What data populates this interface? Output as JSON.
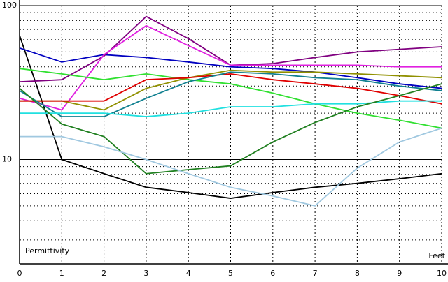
{
  "chart_data": {
    "type": "line",
    "log_y": true,
    "grid": true,
    "ylabel": "Permittivity",
    "xlabel": "Feet",
    "x": [
      0,
      1,
      2,
      3,
      4,
      5,
      6,
      7,
      8,
      9,
      10
    ],
    "xlim": [
      0,
      10
    ],
    "xticks": [
      0,
      1,
      2,
      3,
      4,
      5,
      6,
      7,
      8,
      9,
      10
    ],
    "ylim": [
      2.1,
      100
    ],
    "yticks": [
      10,
      100
    ],
    "y_minor_ticks": [
      3,
      4,
      5,
      6,
      7,
      8,
      9,
      20,
      30,
      40,
      50,
      60,
      70,
      80,
      90
    ],
    "series": [
      {
        "color": "#000000",
        "values": [
          64,
          10,
          8.1,
          6.6,
          6.1,
          5.6,
          6.1,
          6.6,
          7.0,
          7.5,
          8.1
        ]
      },
      {
        "color": "#0000c0",
        "values": [
          53,
          43,
          48,
          46,
          43,
          40,
          39,
          37,
          34,
          31,
          29
        ]
      },
      {
        "color": "#800080",
        "values": [
          32,
          33,
          47,
          85,
          61,
          41,
          42,
          46,
          50,
          52,
          54
        ]
      },
      {
        "color": "#e020e0",
        "values": [
          25,
          21,
          48,
          74,
          55,
          41,
          41,
          41,
          41,
          40,
          40
        ]
      },
      {
        "color": "#30e030",
        "values": [
          39,
          36,
          33,
          36,
          33,
          31,
          27,
          23,
          20,
          18,
          16
        ]
      },
      {
        "color": "#909000",
        "values": [
          24,
          24,
          21,
          29,
          34,
          38,
          37,
          37,
          36,
          35,
          34
        ]
      },
      {
        "color": "#e00000",
        "values": [
          24,
          24,
          24,
          33,
          34,
          36,
          33,
          31,
          29,
          26,
          23
        ]
      },
      {
        "color": "#108090",
        "values": [
          28,
          19,
          19,
          25,
          32,
          37,
          36,
          34,
          33,
          30,
          28
        ]
      },
      {
        "color": "#20e0e0",
        "values": [
          20,
          20,
          20,
          19,
          20,
          22,
          22,
          23,
          23,
          24,
          24
        ]
      },
      {
        "color": "#208020",
        "values": [
          29,
          17,
          14.1,
          8.1,
          8.6,
          9.1,
          13,
          17.4,
          22,
          26,
          31
        ]
      },
      {
        "color": "#a0c8e0",
        "values": [
          14.1,
          14.1,
          12.1,
          10,
          8.1,
          6.6,
          5.8,
          5.0,
          8.8,
          13,
          16
        ]
      }
    ]
  }
}
